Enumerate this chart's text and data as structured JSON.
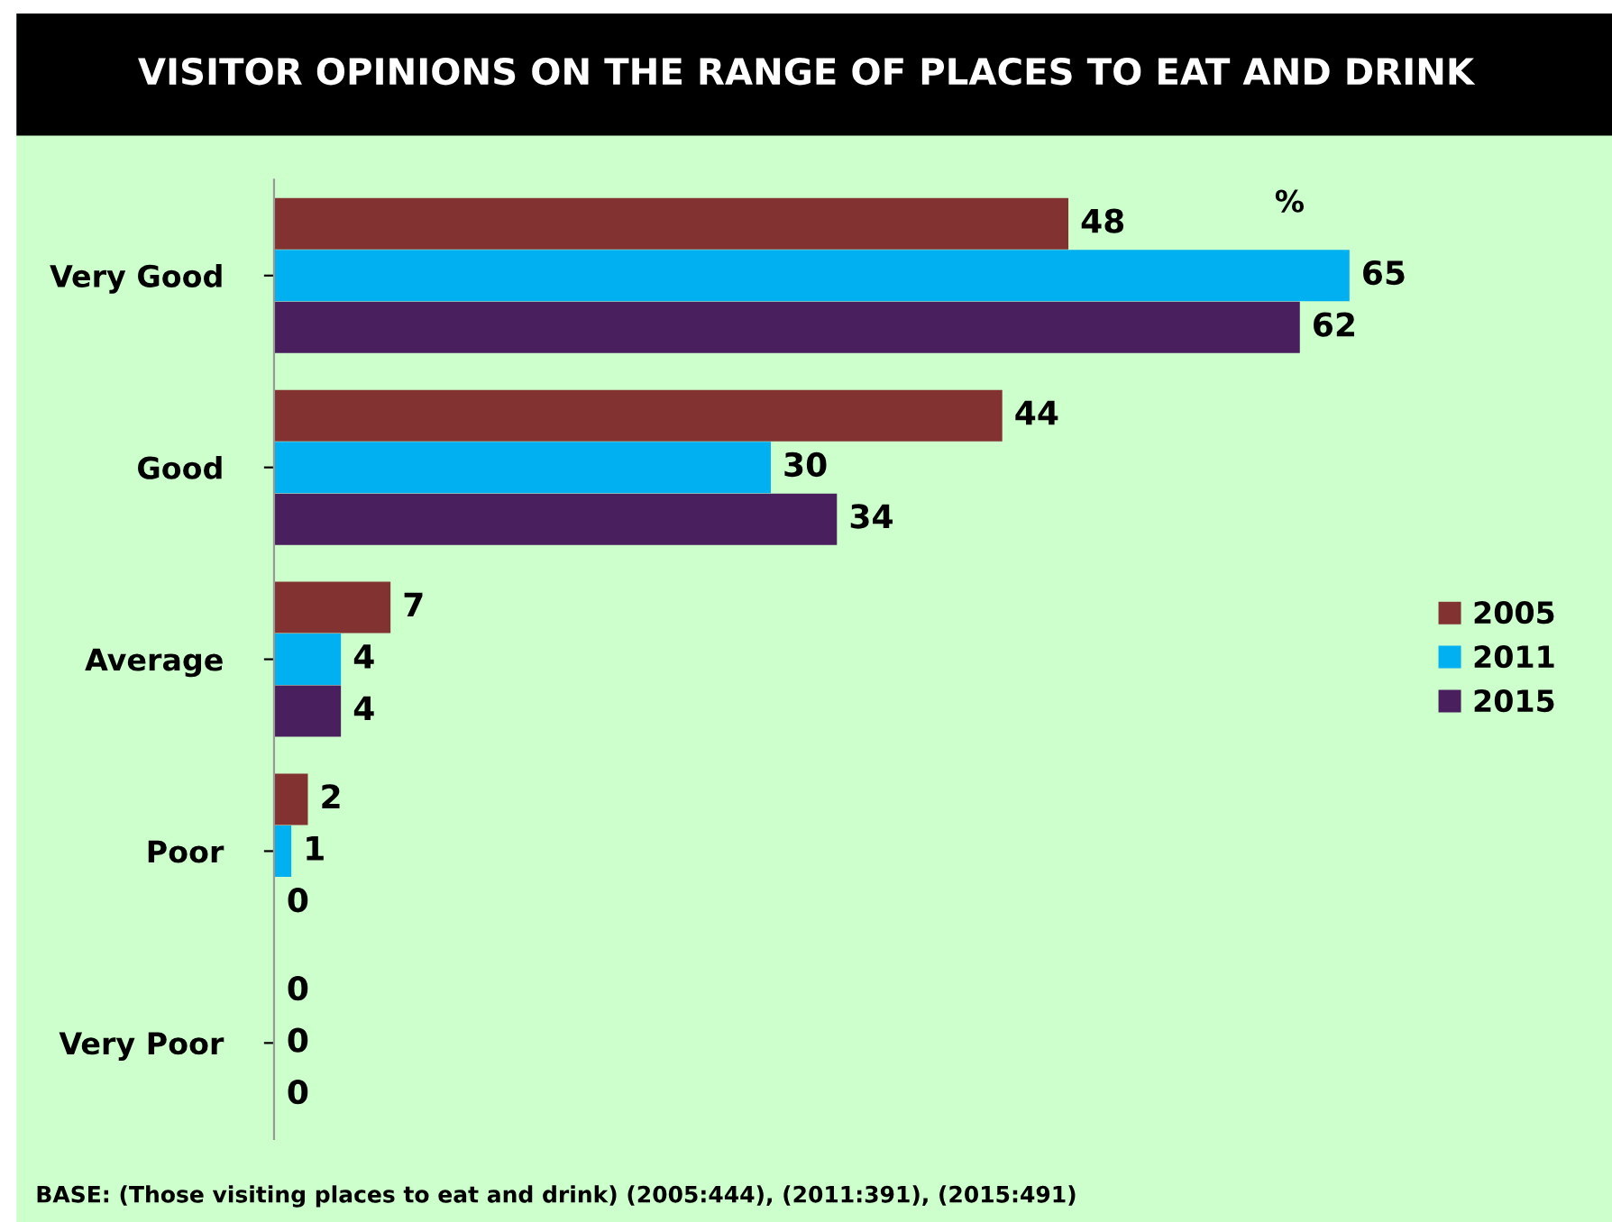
{
  "chart_data": {
    "type": "bar",
    "orientation": "horizontal",
    "title": "VISITOR OPINIONS ON THE RANGE OF PLACES TO EAT AND DRINK",
    "categories": [
      "Very Good",
      "Good",
      "Average",
      "Poor",
      "Very Poor"
    ],
    "series": [
      {
        "name": "2005",
        "color": "#833232",
        "values": [
          48,
          44,
          7,
          2,
          0
        ]
      },
      {
        "name": "2011",
        "color": "#00b0f0",
        "values": [
          65,
          30,
          4,
          1,
          0
        ]
      },
      {
        "name": "2015",
        "color": "#4a1f5e",
        "values": [
          62,
          34,
          4,
          0,
          0
        ]
      }
    ],
    "data_labels": true,
    "legend": "right",
    "grid": false,
    "tick_labels": "y",
    "annotations": [
      "%",
      "BASE: (Those visiting places to eat and drink) (2005:444), (2011:391), (2015:491)"
    ]
  }
}
